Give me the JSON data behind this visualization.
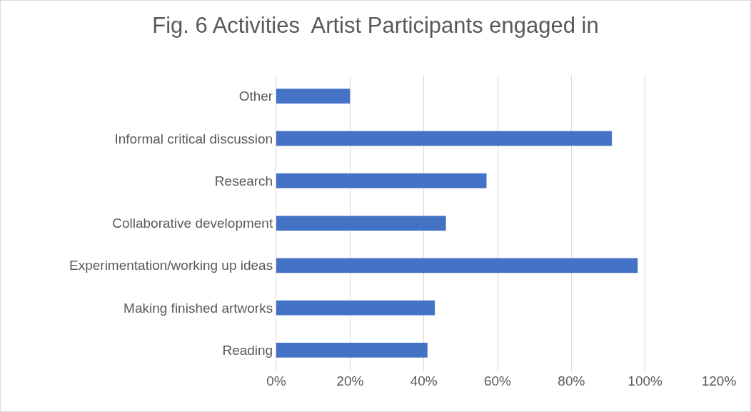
{
  "chart_data": {
    "type": "bar",
    "orientation": "horizontal",
    "title": "Fig. 6 Activities  Artist Participants engaged in",
    "categories": [
      "Other",
      "Informal critical discussion",
      "Research",
      "Collaborative development",
      "Experimentation/working up ideas",
      "Making finished artworks",
      "Reading"
    ],
    "values": [
      20,
      91,
      57,
      46,
      98,
      43,
      41
    ],
    "color": "#4472c4",
    "xlim": [
      0,
      120
    ],
    "xticks": [
      {
        "value": 0,
        "label": "0%"
      },
      {
        "value": 20,
        "label": "20%"
      },
      {
        "value": 40,
        "label": "40%"
      },
      {
        "value": 60,
        "label": "60%"
      },
      {
        "value": 80,
        "label": "80%"
      },
      {
        "value": 100,
        "label": "100%"
      },
      {
        "value": 120,
        "label": "120%"
      }
    ],
    "grid": "x",
    "legend": false
  }
}
